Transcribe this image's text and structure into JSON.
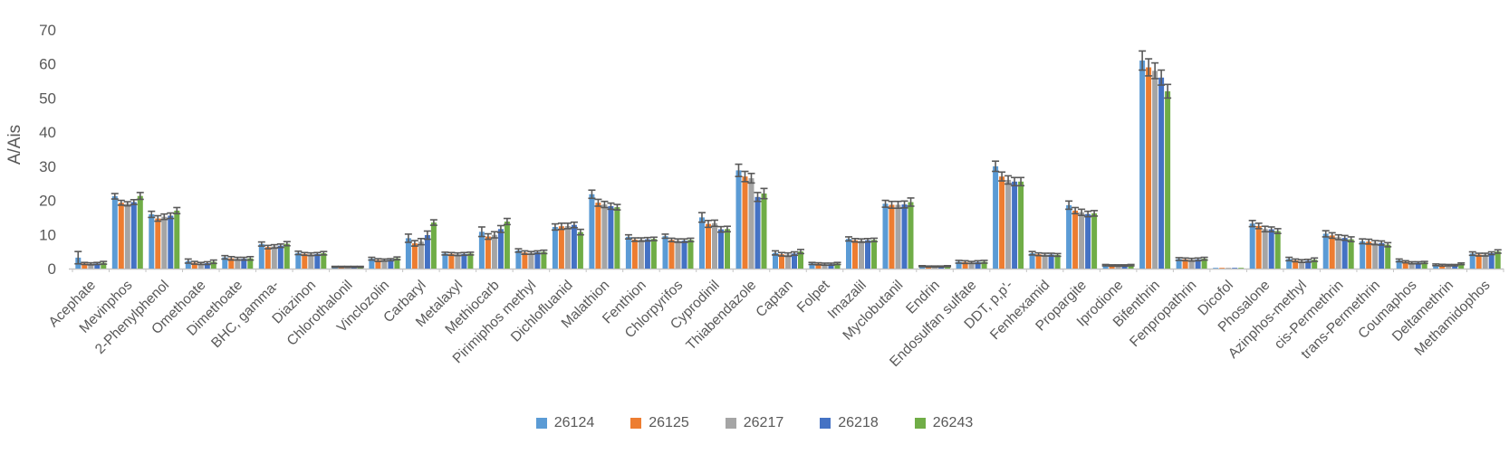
{
  "chart_data": {
    "type": "bar",
    "title": "",
    "xlabel": "",
    "ylabel": "A/Ais",
    "ylim": [
      0,
      70
    ],
    "yticks": [
      0,
      10,
      20,
      30,
      40,
      50,
      60,
      70
    ],
    "grid": false,
    "legend_position": "bottom",
    "error_bars": true,
    "bar_style": "grouped",
    "colors": {
      "text": "#595959",
      "axis_line": "#C6C6C6",
      "error_bar": "#595959",
      "background": "#FFFFFF"
    },
    "categories": [
      "Acephate",
      "Mevinphos",
      "2-Phenylphenol",
      "Omethoate",
      "Dimethoate",
      "BHC, gamma-",
      "Diazinon",
      "Chlorothalonil",
      "Vinclozolin",
      "Carbaryl",
      "Metalaxyl",
      "Methiocarb",
      "Pirimiphos methyl",
      "Dichlofluanid",
      "Malathion",
      "Fenthion",
      "Chlorpyrifos",
      "Cyprodinil",
      "Thiabendazole",
      "Captan",
      "Folpet",
      "Imazalil",
      "Myclobutanil",
      "Endrin",
      "Endosulfan sulfate",
      "DDT, p,p'-",
      "Fenhexamid",
      "Propargite",
      "Iprodione",
      "Bifenthrin",
      "Fenpropathrin",
      "Dicofol",
      "Phosalone",
      "Azinphos-methyl",
      "cis-Permethrin",
      "trans-Permethrin",
      "Coumaphos",
      "Deltamethrin",
      "Methamidophos"
    ],
    "series": [
      {
        "name": "26124",
        "color": "#5B9BD5",
        "values": [
          3.2,
          21.2,
          15.9,
          2.2,
          3.3,
          7.2,
          4.6,
          0.5,
          2.9,
          8.9,
          4.4,
          10.8,
          5.3,
          12.2,
          21.8,
          9.3,
          9.5,
          15.0,
          28.8,
          4.6,
          1.5,
          8.7,
          19.0,
          0.7,
          2.0,
          30.0,
          4.5,
          18.6,
          1.0,
          61.0,
          2.8,
          0.2,
          13.2,
          2.8,
          10.2,
          8.0,
          2.4,
          1.1,
          4.4
        ],
        "errors": [
          1.8,
          0.8,
          0.9,
          0.6,
          0.5,
          0.6,
          0.5,
          0.15,
          0.4,
          1.2,
          0.4,
          1.4,
          0.5,
          0.9,
          1.2,
          0.6,
          0.6,
          1.4,
          1.8,
          0.6,
          0.3,
          0.6,
          1.0,
          0.15,
          0.4,
          1.5,
          0.5,
          1.2,
          0.2,
          2.8,
          0.4,
          0.05,
          0.9,
          0.5,
          0.9,
          0.7,
          0.4,
          0.25,
          0.5
        ]
      },
      {
        "name": "26125",
        "color": "#ED7D31",
        "values": [
          1.5,
          19.3,
          14.7,
          1.7,
          3.0,
          6.3,
          4.3,
          0.5,
          2.5,
          7.4,
          4.3,
          9.4,
          4.7,
          12.4,
          19.3,
          8.5,
          8.4,
          13.1,
          27.0,
          4.2,
          1.4,
          8.3,
          18.7,
          0.6,
          1.9,
          27.0,
          4.2,
          17.0,
          0.9,
          59.0,
          2.7,
          0.2,
          12.5,
          2.4,
          9.7,
          7.9,
          2.0,
          1.0,
          4.1
        ],
        "errors": [
          0.3,
          0.7,
          0.8,
          0.4,
          0.5,
          0.5,
          0.4,
          0.15,
          0.4,
          0.8,
          0.4,
          0.8,
          0.5,
          0.9,
          1.0,
          0.5,
          0.5,
          1.0,
          1.5,
          0.5,
          0.3,
          0.5,
          1.0,
          0.15,
          0.4,
          1.3,
          0.4,
          0.9,
          0.2,
          2.5,
          0.4,
          0.05,
          0.8,
          0.4,
          0.8,
          0.7,
          0.3,
          0.25,
          0.4
        ]
      },
      {
        "name": "26217",
        "color": "#A5A5A5",
        "values": [
          1.4,
          19.0,
          15.2,
          1.5,
          2.9,
          6.5,
          4.2,
          0.5,
          2.5,
          7.9,
          4.2,
          9.9,
          4.6,
          12.5,
          18.8,
          8.5,
          8.2,
          13.3,
          26.5,
          4.1,
          1.3,
          8.2,
          18.7,
          0.6,
          1.8,
          26.0,
          4.1,
          16.5,
          0.9,
          58.0,
          2.6,
          0.2,
          11.6,
          2.2,
          9.2,
          7.6,
          1.7,
          1.0,
          4.1
        ],
        "errors": [
          0.3,
          0.6,
          0.8,
          0.3,
          0.4,
          0.5,
          0.4,
          0.15,
          0.3,
          0.9,
          0.4,
          0.9,
          0.4,
          0.8,
          0.9,
          0.5,
          0.5,
          0.9,
          1.4,
          0.5,
          0.3,
          0.5,
          1.0,
          0.15,
          0.3,
          1.2,
          0.4,
          0.9,
          0.2,
          2.3,
          0.4,
          0.05,
          0.8,
          0.4,
          0.7,
          0.6,
          0.3,
          0.2,
          0.4
        ]
      },
      {
        "name": "26218",
        "color": "#4472C4",
        "values": [
          1.5,
          19.5,
          15.5,
          1.6,
          2.9,
          6.7,
          4.3,
          0.5,
          2.6,
          9.8,
          4.3,
          11.6,
          4.8,
          12.8,
          18.3,
          8.6,
          8.2,
          11.5,
          21.0,
          4.4,
          1.3,
          8.3,
          18.8,
          0.6,
          1.9,
          25.5,
          4.1,
          16.0,
          0.9,
          56.0,
          2.7,
          0.2,
          11.5,
          2.3,
          9.0,
          7.5,
          1.7,
          1.0,
          4.5
        ],
        "errors": [
          0.3,
          0.7,
          0.8,
          0.4,
          0.4,
          0.5,
          0.4,
          0.15,
          0.3,
          1.2,
          0.4,
          1.0,
          0.4,
          0.8,
          0.9,
          0.5,
          0.5,
          0.8,
          1.3,
          0.5,
          0.3,
          0.5,
          1.0,
          0.15,
          0.4,
          1.2,
          0.4,
          0.8,
          0.2,
          2.2,
          0.4,
          0.05,
          0.7,
          0.4,
          0.7,
          0.6,
          0.3,
          0.2,
          0.4
        ]
      },
      {
        "name": "26243",
        "color": "#70AD47",
        "values": [
          1.7,
          21.3,
          17.0,
          2.0,
          3.0,
          7.3,
          4.5,
          0.5,
          3.0,
          13.5,
          4.4,
          13.8,
          4.9,
          10.7,
          18.0,
          8.7,
          8.4,
          11.6,
          22.0,
          5.0,
          1.5,
          8.4,
          19.5,
          0.7,
          2.0,
          25.5,
          4.0,
          16.2,
          1.0,
          52.0,
          2.9,
          0.2,
          11.0,
          2.6,
          8.6,
          7.0,
          1.8,
          1.4,
          5.0
        ],
        "errors": [
          0.4,
          1.0,
          0.9,
          0.5,
          0.5,
          0.6,
          0.5,
          0.15,
          0.4,
          0.8,
          0.4,
          0.9,
          0.5,
          0.8,
          0.8,
          0.5,
          0.5,
          0.8,
          1.5,
          0.6,
          0.3,
          0.5,
          1.2,
          0.15,
          0.4,
          1.2,
          0.4,
          0.8,
          0.2,
          2.0,
          0.4,
          0.05,
          0.7,
          0.5,
          0.7,
          0.6,
          0.3,
          0.25,
          0.5
        ]
      }
    ]
  }
}
